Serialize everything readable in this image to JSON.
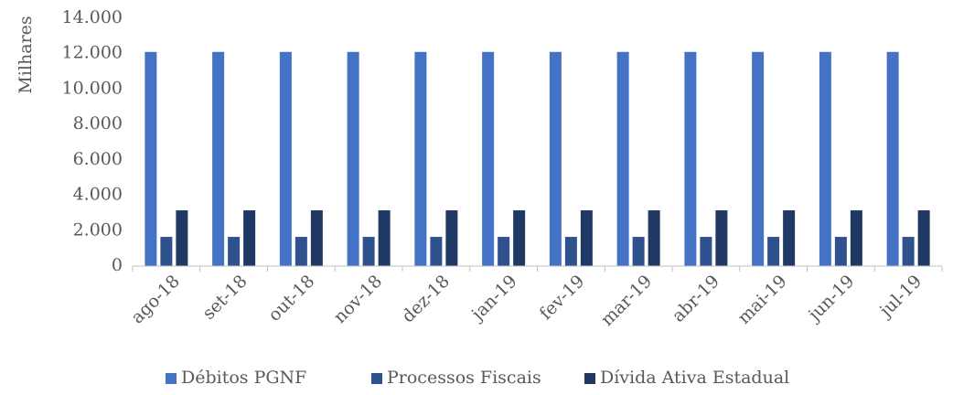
{
  "chart_data": {
    "type": "bar",
    "ylabel": "Milhares",
    "ylim": [
      0,
      14000
    ],
    "y_ticks": [
      {
        "value": 0,
        "label": "0"
      },
      {
        "value": 2000,
        "label": "2.000"
      },
      {
        "value": 4000,
        "label": "4.000"
      },
      {
        "value": 6000,
        "label": "6.000"
      },
      {
        "value": 8000,
        "label": "8.000"
      },
      {
        "value": 10000,
        "label": "10.000"
      },
      {
        "value": 12000,
        "label": "12.000"
      },
      {
        "value": 14000,
        "label": "14.000"
      }
    ],
    "grid": false,
    "legend_position": "bottom",
    "categories": [
      "ago-18",
      "set-18",
      "out-18",
      "nov-18",
      "dez-18",
      "jan-19",
      "fev-19",
      "mar-19",
      "abr-19",
      "mai-19",
      "jun-19",
      "jul-19"
    ],
    "series": [
      {
        "name": "Débitos PGNF",
        "color": "#4472c4",
        "values": [
          12100,
          12100,
          12100,
          12100,
          12100,
          12100,
          12100,
          12100,
          12100,
          12100,
          12100,
          12100
        ]
      },
      {
        "name": "Processos Fiscais",
        "color": "#2f528f",
        "values": [
          1650,
          1650,
          1650,
          1650,
          1650,
          1650,
          1650,
          1650,
          1650,
          1650,
          1650,
          1650
        ]
      },
      {
        "name": "Dívida Ativa Estadual",
        "color": "#203864",
        "values": [
          3150,
          3150,
          3150,
          3150,
          3150,
          3150,
          3150,
          3150,
          3150,
          3150,
          3150,
          3150
        ]
      }
    ]
  }
}
